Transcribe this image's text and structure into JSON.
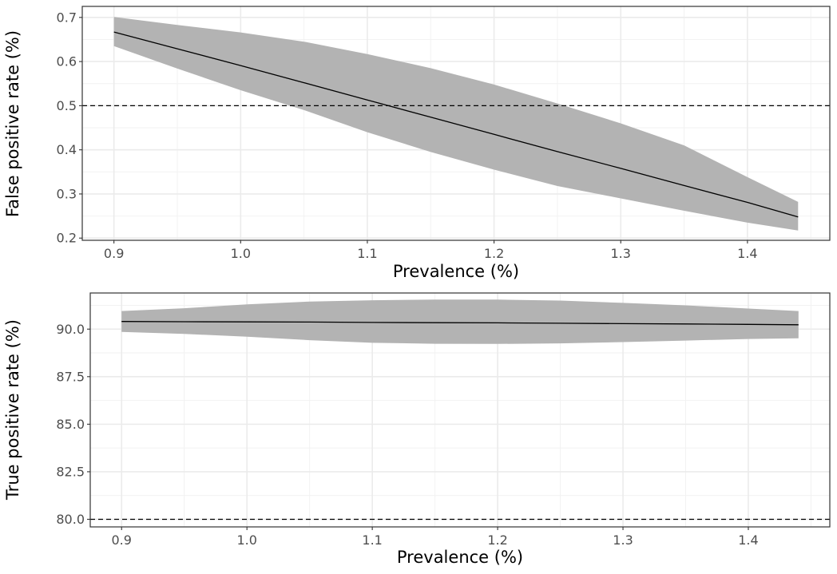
{
  "chart_data": [
    {
      "type": "line",
      "xlabel": "Prevalence (%)",
      "ylabel": "False positive rate (%)",
      "xlim": [
        0.875,
        1.465
      ],
      "ylim": [
        0.195,
        0.725
      ],
      "x_ticks": [
        0.9,
        1.0,
        1.1,
        1.2,
        1.3,
        1.4
      ],
      "x_tick_labels": [
        "0.9",
        "1.0",
        "1.1",
        "1.2",
        "1.3",
        "1.4"
      ],
      "y_ticks": [
        0.2,
        0.3,
        0.4,
        0.5,
        0.6,
        0.7
      ],
      "y_tick_labels": [
        "0.2",
        "0.3",
        "0.4",
        "0.5",
        "0.6",
        "0.7"
      ],
      "reference_line": {
        "y": 0.5,
        "style": "dashed"
      },
      "grid": true,
      "band_color": "#b3b3b3",
      "line_color": "#000000",
      "series": [
        {
          "x": [
            0.9,
            0.95,
            1.0,
            1.05,
            1.1,
            1.15,
            1.2,
            1.25,
            1.3,
            1.35,
            1.4,
            1.44
          ],
          "y": [
            0.667,
            0.629,
            0.591,
            0.552,
            0.513,
            0.474,
            0.435,
            0.396,
            0.358,
            0.319,
            0.281,
            0.248
          ],
          "lower": [
            0.635,
            0.584,
            0.535,
            0.49,
            0.44,
            0.395,
            0.355,
            0.318,
            0.29,
            0.262,
            0.235,
            0.217
          ],
          "upper": [
            0.701,
            0.683,
            0.666,
            0.645,
            0.617,
            0.585,
            0.548,
            0.505,
            0.46,
            0.41,
            0.338,
            0.282
          ]
        }
      ]
    },
    {
      "type": "line",
      "xlabel": "Prevalence (%)",
      "ylabel": "True positive rate (%)",
      "xlim": [
        0.875,
        1.465
      ],
      "ylim": [
        79.6,
        91.9
      ],
      "x_ticks": [
        0.9,
        1.0,
        1.1,
        1.2,
        1.3,
        1.4
      ],
      "x_tick_labels": [
        "0.9",
        "1.0",
        "1.1",
        "1.2",
        "1.3",
        "1.4"
      ],
      "y_ticks": [
        80.0,
        82.5,
        85.0,
        87.5,
        90.0
      ],
      "y_tick_labels": [
        "80.0",
        "82.5",
        "85.0",
        "87.5",
        "90.0"
      ],
      "reference_line": {
        "y": 80.0,
        "style": "dashed"
      },
      "grid": true,
      "band_color": "#b3b3b3",
      "line_color": "#000000",
      "series": [
        {
          "x": [
            0.9,
            0.95,
            1.0,
            1.05,
            1.1,
            1.15,
            1.2,
            1.25,
            1.3,
            1.35,
            1.4,
            1.44
          ],
          "y": [
            90.4,
            90.39,
            90.38,
            90.37,
            90.35,
            90.34,
            90.33,
            90.31,
            90.29,
            90.27,
            90.25,
            90.23
          ],
          "lower": [
            89.85,
            89.75,
            89.6,
            89.42,
            89.28,
            89.23,
            89.22,
            89.25,
            89.32,
            89.4,
            89.48,
            89.52
          ],
          "upper": [
            90.95,
            91.1,
            91.3,
            91.45,
            91.52,
            91.55,
            91.55,
            91.5,
            91.38,
            91.25,
            91.08,
            90.95
          ]
        }
      ]
    }
  ]
}
